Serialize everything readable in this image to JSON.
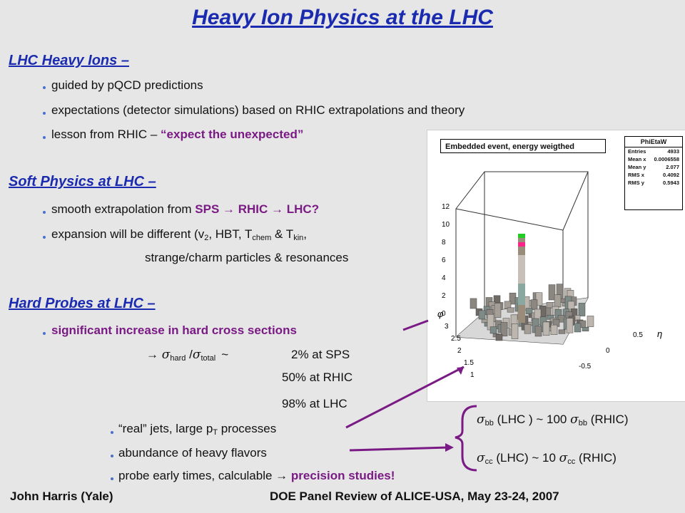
{
  "title": "Heavy Ion Physics at the LHC",
  "sections": {
    "lhc_heavy_ions": {
      "heading": "LHC Heavy Ions –",
      "bullets": [
        "guided by pQCD predictions",
        "expectations (detector simulations) based on RHIC extrapolations and theory"
      ],
      "bullet3_prefix": "lesson from RHIC – ",
      "bullet3_emph": "“expect the unexpected”"
    },
    "soft_physics": {
      "heading": "Soft Physics at LHC –",
      "b1_prefix": "smooth extrapolation from ",
      "b1_sps": "SPS",
      "b1_rhic": "RHIC",
      "b1_lhc": "LHC?",
      "b2_a": "expansion will be different (v",
      "b2_sub_v": "2",
      "b2_b": ", HBT, T",
      "b2_sub_chem": "chem",
      "b2_c": " & T",
      "b2_sub_kin": "kin",
      "b2_d": ",",
      "b2_line2": "strange/charm particles & resonances"
    },
    "hard_probes": {
      "heading": "Hard Probes at LHC –",
      "b1": "significant increase in hard cross sections",
      "ratio_sub_hard": "hard",
      "ratio_sub_total": "total",
      "ratio_tilde": "~",
      "rows": [
        "2% at SPS",
        "50% at RHIC",
        "98% at LHC"
      ],
      "sub_bullets": {
        "jets_a": "“real” jets, large p",
        "jets_sub": "T",
        "jets_b": " processes",
        "heavy": "abundance of heavy flavors",
        "probe_prefix": "probe early times, calculable ",
        "probe_emph": "precision studies!"
      }
    }
  },
  "brace": {
    "line1": {
      "sub1": "bb",
      "mid": " (LHC ) ~ 100 ",
      "sub2": "bb",
      "end": " (RHIC)"
    },
    "line2": {
      "sub1": "cc",
      "mid": " (LHC) ~ 10 ",
      "sub2": "cc",
      "end": " (RHIC)"
    }
  },
  "plot": {
    "title": "Embedded event, energy weigthed",
    "stats_title": "PhiEtaW",
    "stats": [
      {
        "k": "Entries",
        "v": "4933"
      },
      {
        "k": "Mean x",
        "v": "0.0006558"
      },
      {
        "k": "Mean y",
        "v": "2.077"
      },
      {
        "k": "RMS x",
        "v": "0.4092"
      },
      {
        "k": "RMS y",
        "v": "0.5943"
      }
    ],
    "z_ticks": [
      "12",
      "10",
      "8",
      "6",
      "4",
      "2",
      "0"
    ],
    "phi_ticks": [
      "3",
      "2.5",
      "2",
      "1.5",
      "1"
    ],
    "phi_label": "φ",
    "eta_ticks": [
      "0.5",
      "0",
      "-0.5"
    ],
    "eta_label": "η"
  },
  "footer": {
    "left": "John Harris (Yale)",
    "right": "DOE Panel Review of ALICE-USA, May 23-24, 2007"
  },
  "colors": {
    "heading_blue": "#1a2bb0",
    "emphasis_purple": "#7a1a84",
    "background": "#e6e6e6"
  }
}
